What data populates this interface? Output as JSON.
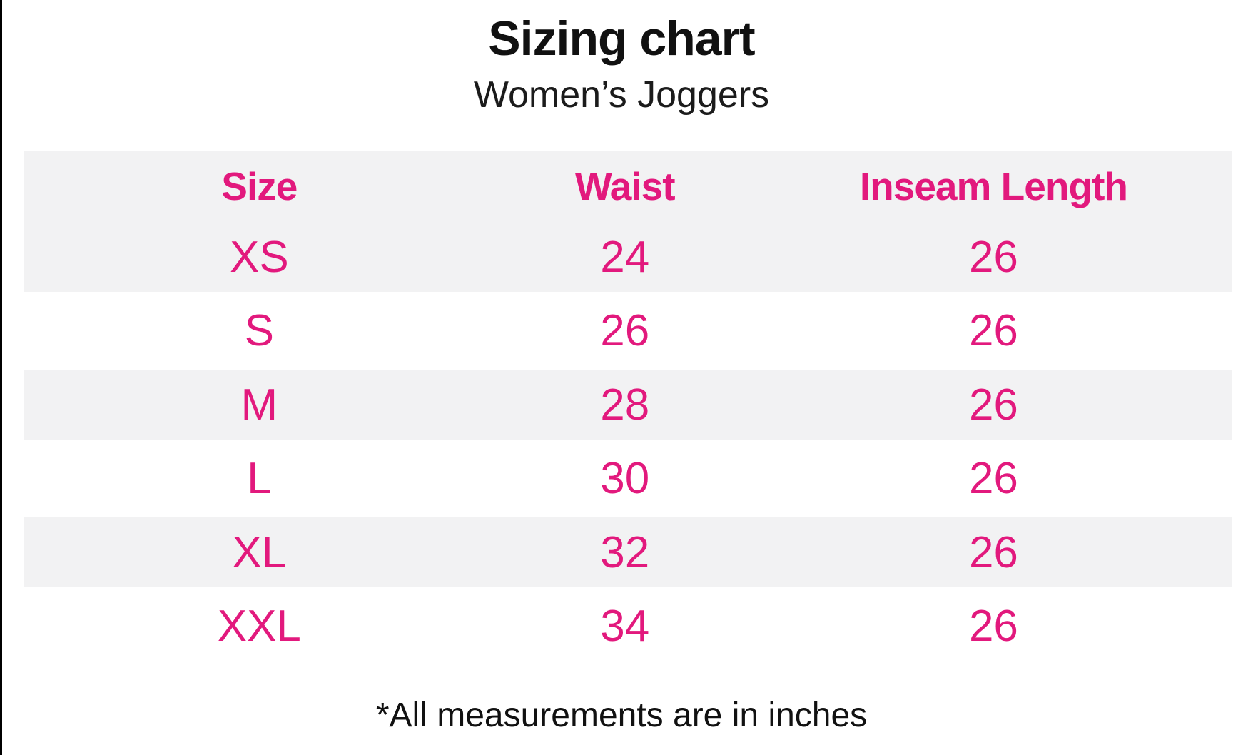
{
  "colors": {
    "accent": "#e2197d",
    "stripe": "#f2f2f3",
    "ink": "#111111"
  },
  "header": {
    "title": "Sizing chart",
    "subtitle": "Women’s Joggers"
  },
  "table": {
    "columns": [
      "Size",
      "Waist",
      "Inseam Length"
    ],
    "rows": [
      {
        "size": "XS",
        "waist": "24",
        "inseam": "26"
      },
      {
        "size": "S",
        "waist": "26",
        "inseam": "26"
      },
      {
        "size": "M",
        "waist": "28",
        "inseam": "26"
      },
      {
        "size": "L",
        "waist": "30",
        "inseam": "26"
      },
      {
        "size": "XL",
        "waist": "32",
        "inseam": "26"
      },
      {
        "size": "XXL",
        "waist": "34",
        "inseam": "26"
      }
    ]
  },
  "footnote": "*All measurements are in inches",
  "chart_data": {
    "type": "table",
    "title": "Sizing chart",
    "subtitle": "Women’s Joggers",
    "columns": [
      "Size",
      "Waist",
      "Inseam Length"
    ],
    "rows": [
      [
        "XS",
        24,
        26
      ],
      [
        "S",
        26,
        26
      ],
      [
        "M",
        28,
        26
      ],
      [
        "L",
        30,
        26
      ],
      [
        "XL",
        32,
        26
      ],
      [
        "XXL",
        34,
        26
      ]
    ],
    "note": "*All measurements are in inches",
    "layout_hints": {
      "striped_rows": true,
      "header_background": "#f2f2f3",
      "text_color": "#e2197d"
    }
  }
}
